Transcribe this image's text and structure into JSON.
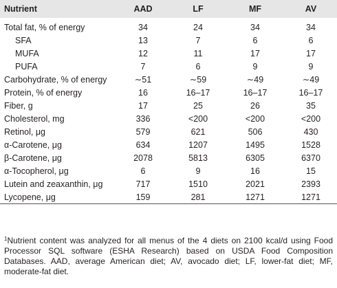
{
  "table": {
    "header": [
      "Nutrient",
      "AAD",
      "LF",
      "MF",
      "AV"
    ],
    "rows": [
      [
        "Total fat, % of energy",
        "34",
        "24",
        "34",
        "34"
      ],
      [
        "SFA",
        "13",
        "7",
        "6",
        "6"
      ],
      [
        "MUFA",
        "12",
        "11",
        "17",
        "17"
      ],
      [
        "PUFA",
        "7",
        "6",
        "9",
        "9"
      ],
      [
        "Carbohydrate, % of energy",
        "∼51",
        "∼59",
        "∼49",
        "∼49"
      ],
      [
        "Protein, % of energy",
        "16",
        "16–17",
        "16–17",
        "16–17"
      ],
      [
        "Fiber, g",
        "17",
        "25",
        "26",
        "35"
      ],
      [
        "Cholesterol, mg",
        "336",
        "<200",
        "<200",
        "<200"
      ],
      [
        "Retinol, μg",
        "579",
        "621",
        "506",
        "430"
      ],
      [
        "α-Carotene, μg",
        "634",
        "1207",
        "1495",
        "1528"
      ],
      [
        "β-Carotene, μg",
        "2078",
        "5813",
        "6305",
        "6370"
      ],
      [
        "α-Tocopherol, μg",
        "6",
        "9",
        "16",
        "15"
      ],
      [
        "Lutein and zeaxanthin, μg",
        "717",
        "1510",
        "2021",
        "2393"
      ],
      [
        "Lycopene, μg",
        "159",
        "281",
        "1271",
        "1271"
      ]
    ]
  },
  "footnote": {
    "marker": "1",
    "text": "Nutrient content was analyzed for all menus of the 4 diets on 2100 kcal/d using Food Processor SQL software (ESHA Research) based on USDA Food Composition Databases. AAD, average American diet; AV, avocado diet; LF, lower-fat diet; MF, moderate-fat diet."
  }
}
